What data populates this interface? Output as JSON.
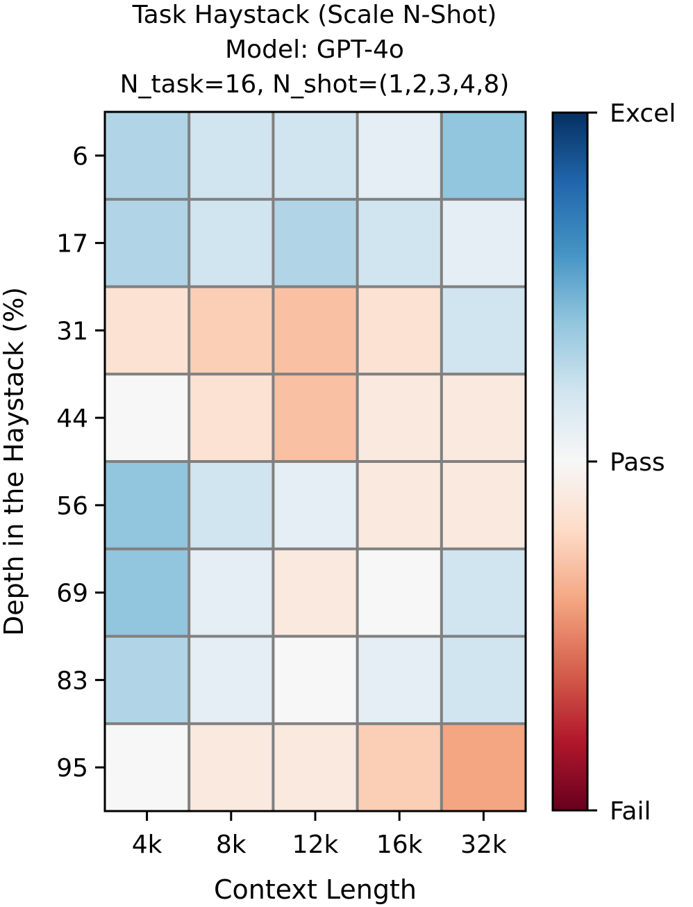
{
  "chart_data": {
    "type": "heatmap",
    "title": [
      "Task Haystack (Scale N-Shot)",
      "Model: GPT-4o",
      "N_task=16, N_shot=(1,2,3,4,8)"
    ],
    "xlabel": "Context Length",
    "ylabel": "Depth in the Haystack (%)",
    "x_categories": [
      "4k",
      "8k",
      "12k",
      "16k",
      "32k"
    ],
    "y_categories": [
      "6",
      "17",
      "31",
      "44",
      "56",
      "69",
      "83",
      "95"
    ],
    "value_range": [
      -1,
      1
    ],
    "values": [
      [
        0.3,
        0.2,
        0.2,
        0.1,
        0.4
      ],
      [
        0.3,
        0.2,
        0.3,
        0.2,
        0.1
      ],
      [
        -0.15,
        -0.25,
        -0.3,
        -0.15,
        0.2
      ],
      [
        0.0,
        -0.15,
        -0.3,
        -0.1,
        -0.1
      ],
      [
        0.4,
        0.2,
        0.1,
        -0.1,
        -0.1
      ],
      [
        0.4,
        0.1,
        -0.1,
        0.0,
        0.2
      ],
      [
        0.3,
        0.1,
        0.0,
        0.1,
        0.2
      ],
      [
        0.0,
        -0.1,
        -0.1,
        -0.25,
        -0.4
      ]
    ],
    "colormap": "RdBu",
    "colorbar": {
      "ticks": [
        {
          "value": 1,
          "label": "Excel"
        },
        {
          "value": 0,
          "label": "Pass"
        },
        {
          "value": -1,
          "label": "Fail"
        }
      ]
    },
    "grid_color": "#808080"
  }
}
